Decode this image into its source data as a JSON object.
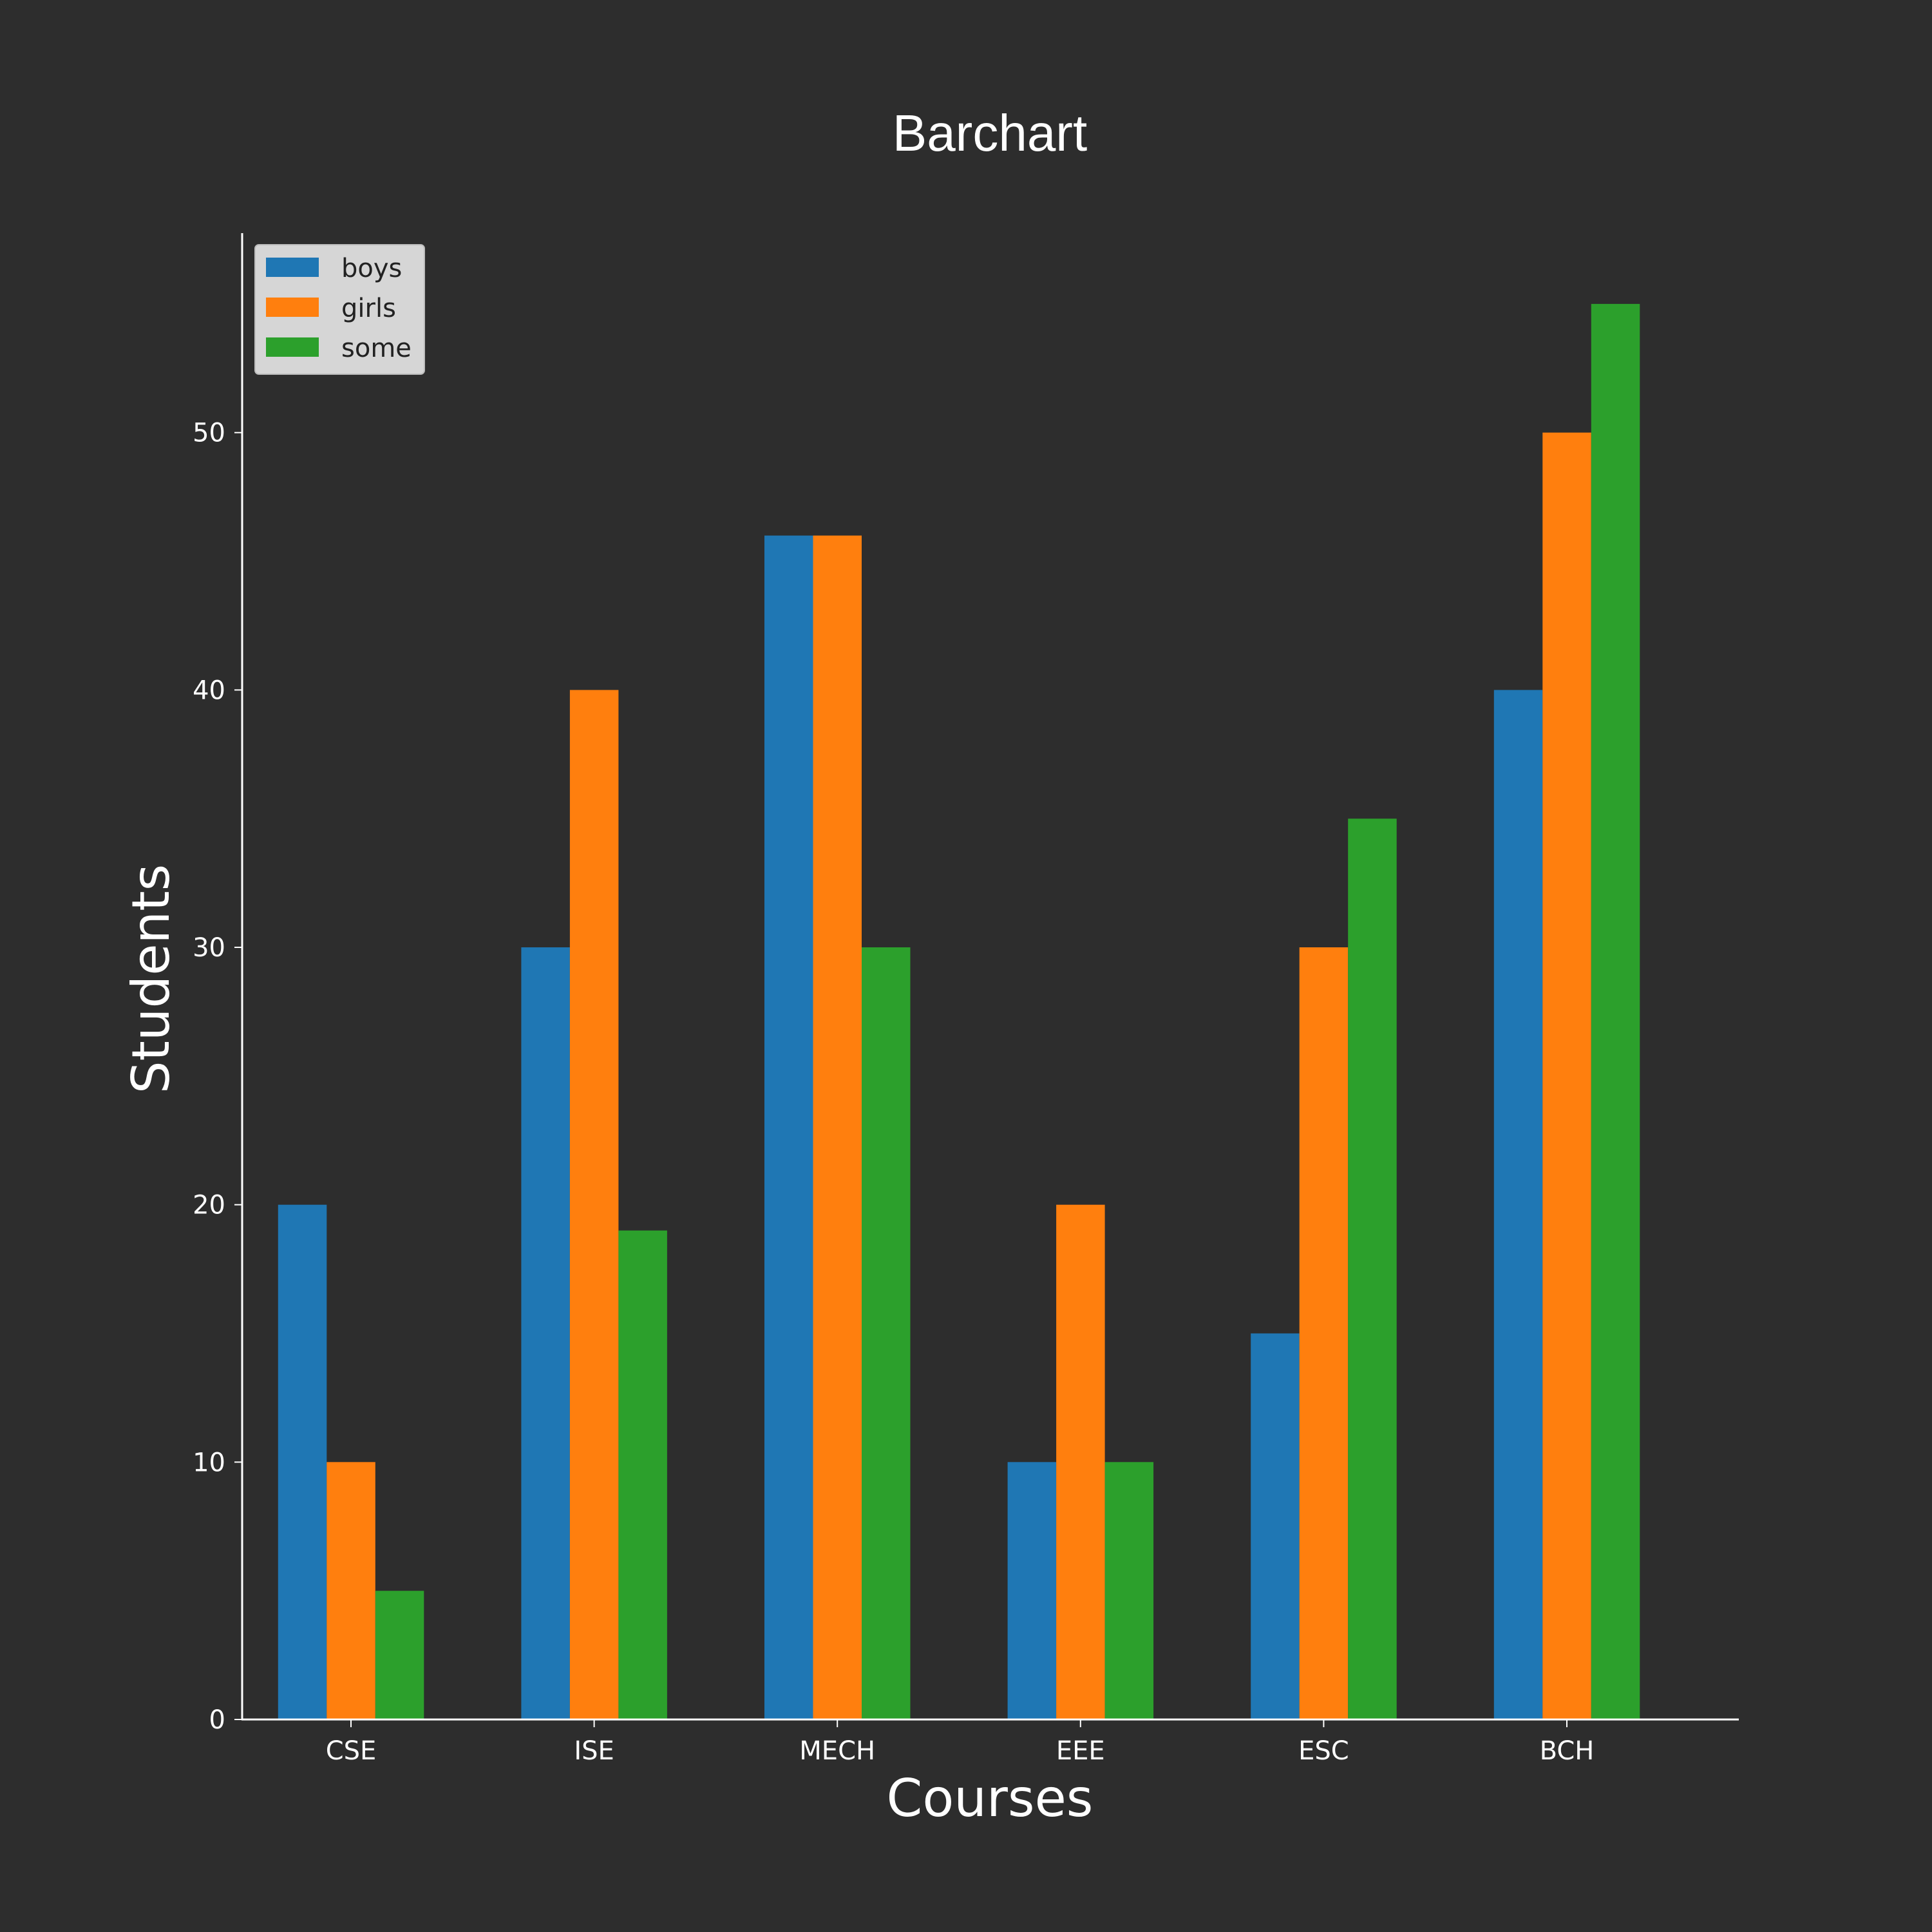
{
  "chart_data": {
    "type": "bar",
    "title": "Barchart",
    "xlabel": "Courses",
    "ylabel": "Students",
    "categories": [
      "CSE",
      "ISE",
      "MECH",
      "EEE",
      "ESC",
      "BCH"
    ],
    "series": [
      {
        "name": "boys",
        "color": "#1f77b4",
        "values": [
          20,
          30,
          46,
          10,
          15,
          40
        ]
      },
      {
        "name": "girls",
        "color": "#ff7f0e",
        "values": [
          10,
          40,
          46,
          20,
          30,
          50
        ]
      },
      {
        "name": "some",
        "color": "#2ca02c",
        "values": [
          5,
          19,
          30,
          10,
          35,
          55
        ]
      }
    ],
    "ylim": [
      0,
      57.75
    ],
    "yticks": [
      0,
      10,
      20,
      30,
      40,
      50
    ],
    "grid": false,
    "legend_position": "top-left",
    "background": "#2d2d2d"
  }
}
